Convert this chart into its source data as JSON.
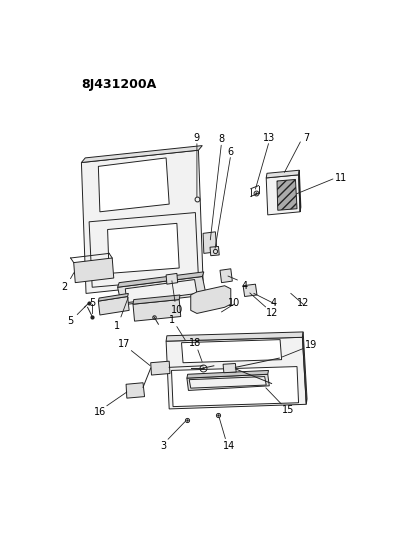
{
  "title": "8J431200A",
  "bg": "#ffffff",
  "lc": "#222222",
  "fc_light": "#f2f2f2",
  "fc_mid": "#e0e0e0",
  "fc_dark": "#c8c8c8",
  "fc_hatch": "#999999"
}
